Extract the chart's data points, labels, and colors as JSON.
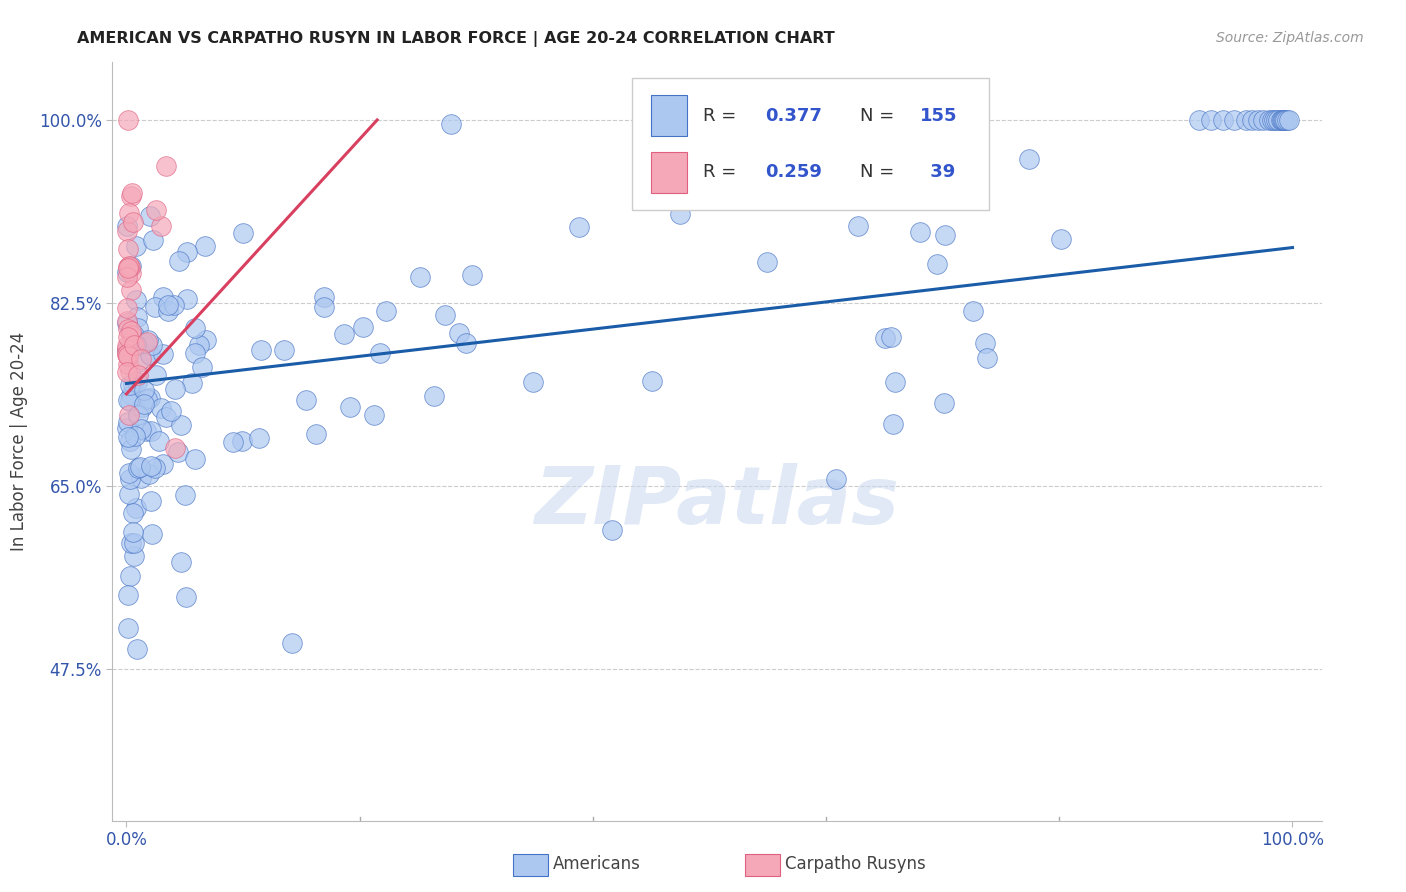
{
  "title": "AMERICAN VS CARPATHO RUSYN IN LABOR FORCE | AGE 20-24 CORRELATION CHART",
  "source": "Source: ZipAtlas.com",
  "ylabel": "In Labor Force | Age 20-24",
  "legend_labels": [
    "Americans",
    "Carpatho Rusyns"
  ],
  "legend_r_am": "R = 0.377",
  "legend_n_am": "N = 155",
  "legend_r_ru": "R = 0.259",
  "legend_n_ru": "N =  39",
  "american_fill": "#adc8f0",
  "american_edge": "#4472c4",
  "rusyn_fill": "#f5a8b8",
  "rusyn_edge": "#e06080",
  "am_line_color": "#1a5ca8",
  "ru_line_color": "#d94060",
  "watermark": "ZIPatlas",
  "bg_color": "#ffffff",
  "grid_color": "#cccccc",
  "yticks": [
    0.475,
    0.65,
    0.825,
    1.0
  ],
  "yticklabels": [
    "47.5%",
    "65.0%",
    "82.5%",
    "100.0%"
  ],
  "xticks": [
    0.0,
    1.0
  ],
  "xticklabels": [
    "0.0%",
    "100.0%"
  ],
  "am_line_x0": 0.0,
  "am_line_y0": 0.748,
  "am_line_x1": 1.0,
  "am_line_y1": 0.878,
  "ru_line_x0": 0.0,
  "ru_line_y0": 0.738,
  "ru_line_x1": 0.215,
  "ru_line_y1": 1.0
}
